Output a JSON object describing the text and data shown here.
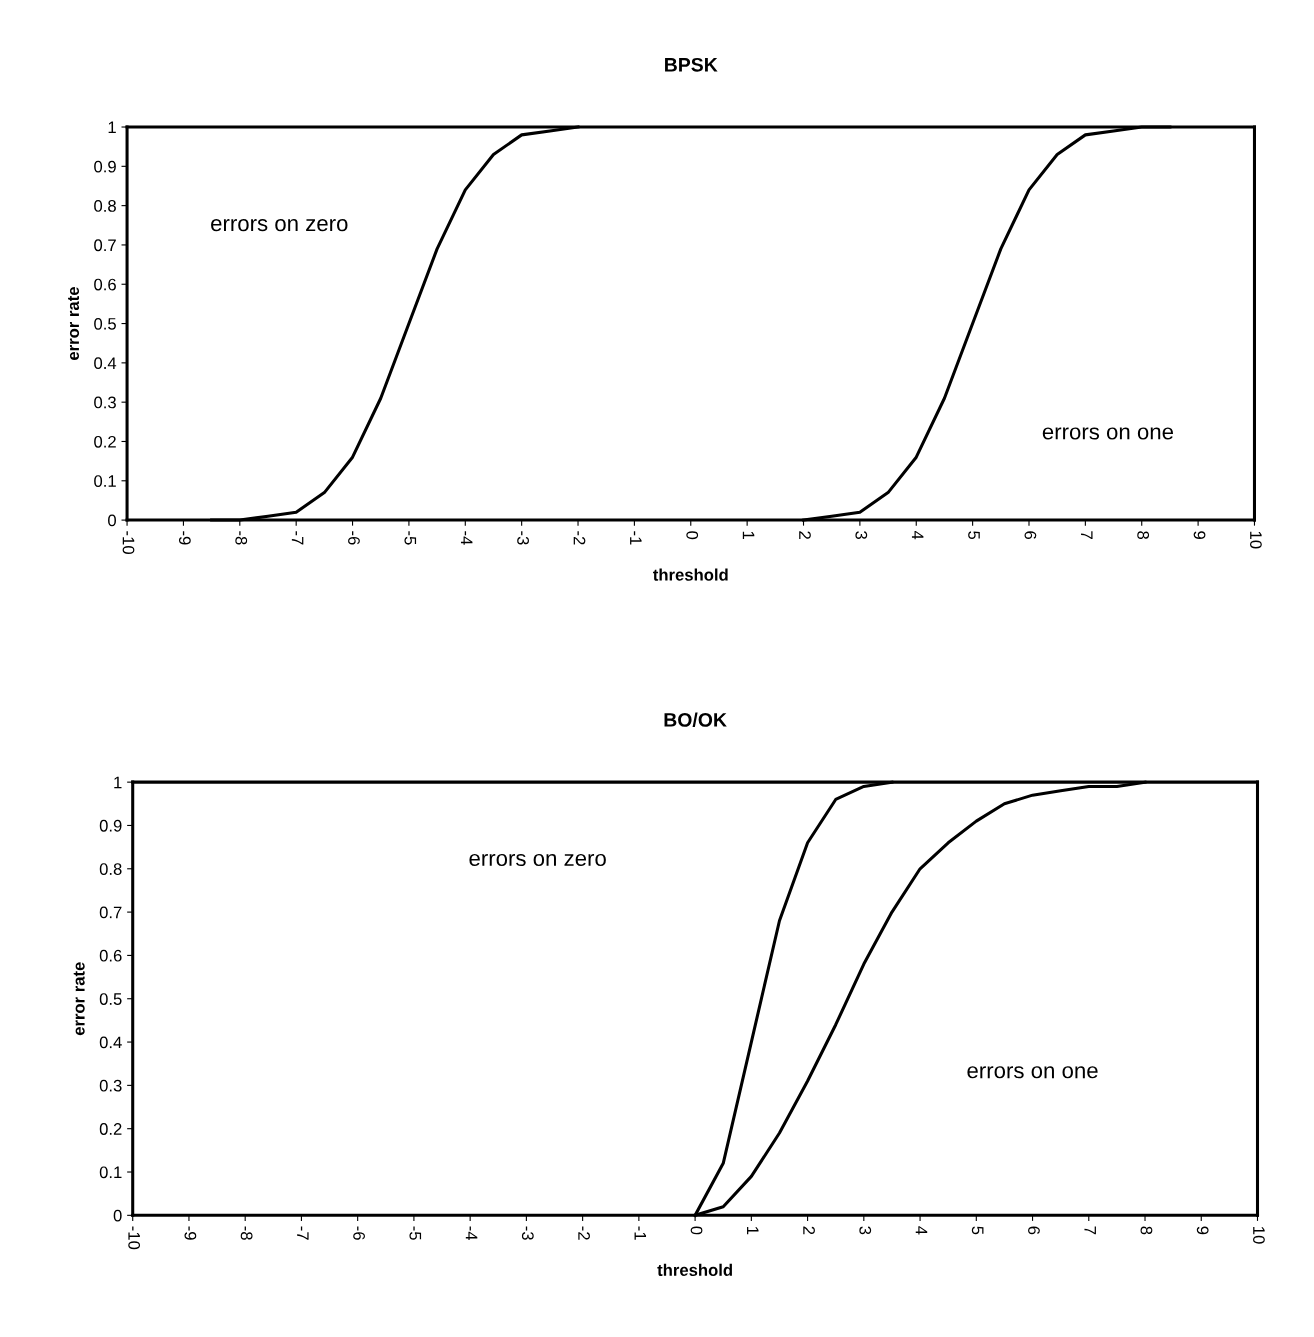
{
  "chart_data": [
    {
      "type": "line",
      "title": "BPSK",
      "xlabel": "threshold",
      "ylabel": "error rate",
      "series": [
        {
          "color": "#000000",
          "x": [
            -8.5,
            -8,
            -7.5,
            -7,
            -6.5,
            -6,
            -5.5,
            -5,
            -4.5,
            -4,
            -3.5,
            -3,
            -2.5,
            -2
          ],
          "values": [
            0,
            0,
            0.01,
            0.02,
            0.07,
            0.16,
            0.31,
            0.5,
            0.69,
            0.84,
            0.93,
            0.98,
            0.99,
            1
          ]
        },
        {
          "color": "#000000",
          "x": [
            2,
            2.5,
            3,
            3.5,
            4,
            4.5,
            5,
            5.5,
            6,
            6.5,
            7,
            7.5,
            8,
            8.5
          ],
          "values": [
            0,
            0.01,
            0.02,
            0.07,
            0.16,
            0.31,
            0.5,
            0.69,
            0.84,
            0.93,
            0.98,
            0.99,
            1,
            1
          ]
        }
      ],
      "xlim": [
        -10,
        10
      ],
      "ylim": [
        0,
        1
      ],
      "xticks": [
        -10,
        -9,
        -8,
        -7,
        -6,
        -5,
        -4,
        -3,
        -2,
        -1,
        0,
        1,
        2,
        3,
        4,
        5,
        6,
        7,
        8,
        9,
        10
      ],
      "yticks": [
        0,
        0.1,
        0.2,
        0.3,
        0.4,
        0.5,
        0.6,
        0.7,
        0.8,
        0.9,
        1
      ],
      "annotations": [
        "errors on zero",
        "errors on one"
      ],
      "grid": false,
      "legend": false,
      "marker": "none",
      "line_style": "solid"
    },
    {
      "type": "line",
      "title": "BO/OK",
      "xlabel": "threshold",
      "ylabel": "error rate",
      "series": [
        {
          "color": "#000000",
          "x": [
            0,
            0.5,
            1,
            1.5,
            2,
            2.5,
            3,
            3.5
          ],
          "values": [
            0,
            0.12,
            0.4,
            0.68,
            0.86,
            0.96,
            0.99,
            1
          ]
        },
        {
          "color": "#000000",
          "x": [
            0,
            0.5,
            1,
            1.5,
            2,
            2.5,
            3,
            3.5,
            4,
            4.5,
            5,
            5.5,
            6,
            6.5,
            7,
            7.5,
            8
          ],
          "values": [
            0,
            0.02,
            0.09,
            0.19,
            0.31,
            0.44,
            0.58,
            0.7,
            0.8,
            0.86,
            0.91,
            0.95,
            0.97,
            0.98,
            0.99,
            0.99,
            1
          ]
        }
      ],
      "xlim": [
        -10,
        10
      ],
      "ylim": [
        0,
        1
      ],
      "xticks": [
        -10,
        -9,
        -8,
        -7,
        -6,
        -5,
        -4,
        -3,
        -2,
        -1,
        0,
        1,
        2,
        3,
        4,
        5,
        6,
        7,
        8,
        9,
        10
      ],
      "yticks": [
        0,
        0.1,
        0.2,
        0.3,
        0.4,
        0.5,
        0.6,
        0.7,
        0.8,
        0.9,
        1
      ],
      "annotations": [
        "errors on zero",
        "errors on one"
      ],
      "grid": false,
      "legend": false,
      "marker": "none",
      "line_style": "solid"
    }
  ]
}
